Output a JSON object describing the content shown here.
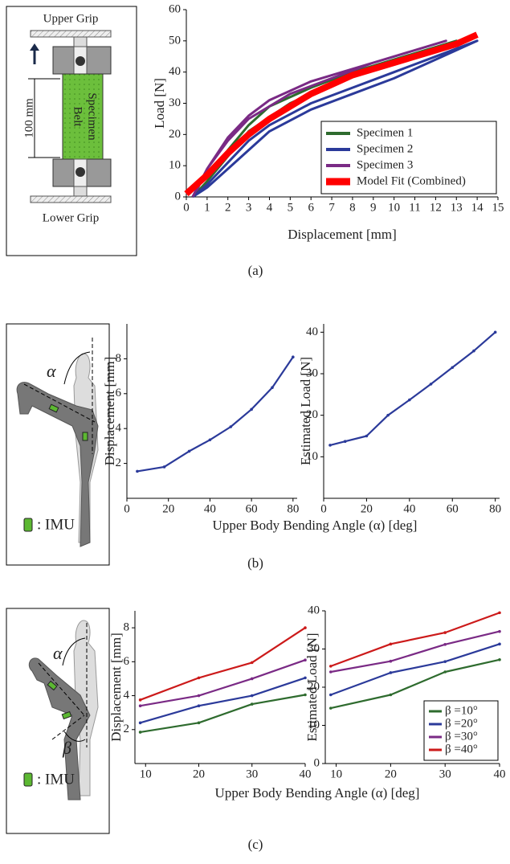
{
  "chart_data": [
    {
      "type": "line",
      "panel_label": "(a)",
      "xlabel": "Displacement [mm]",
      "ylabel": "Load [N]",
      "xlim": [
        0,
        15
      ],
      "ylim": [
        0,
        60
      ],
      "xticks": [
        0,
        1,
        2,
        3,
        4,
        5,
        6,
        7,
        8,
        9,
        10,
        11,
        12,
        13,
        14,
        15
      ],
      "yticks": [
        0,
        10,
        20,
        30,
        40,
        50,
        60
      ],
      "legend": "lower right",
      "markers": false,
      "series": [
        {
          "name": "Specimen 1",
          "color": "#2e6b2e",
          "line_width": 3,
          "x": [
            0.3,
            1,
            2,
            3,
            4,
            6,
            8,
            10,
            12,
            13,
            11,
            9,
            7,
            5,
            3,
            2,
            1,
            0.5
          ],
          "values": [
            0,
            5,
            15,
            23,
            29,
            35,
            40,
            44,
            48,
            50,
            46,
            41,
            36,
            30,
            21,
            13,
            5,
            1
          ]
        },
        {
          "name": "Specimen 2",
          "color": "#2b3a9a",
          "line_width": 3,
          "x": [
            0.3,
            1,
            2,
            3,
            4,
            6,
            8,
            10,
            12,
            14,
            12,
            10,
            8,
            6,
            4,
            3,
            2,
            1,
            0.5
          ],
          "values": [
            0,
            3,
            9,
            15,
            21,
            28,
            33,
            38,
            44,
            50,
            45,
            40,
            35,
            30,
            23,
            18,
            11,
            4,
            1
          ]
        },
        {
          "name": "Specimen 3",
          "color": "#7a2a85",
          "line_width": 3,
          "x": [
            0.3,
            1,
            2,
            3,
            4,
            6,
            8,
            10,
            12,
            12.5,
            11,
            9,
            7,
            5,
            3,
            2,
            1,
            0.5
          ],
          "values": [
            0,
            9,
            19,
            26,
            31,
            37,
            41,
            45,
            49,
            50,
            47,
            43,
            38,
            33,
            25,
            18,
            9,
            2
          ]
        },
        {
          "name": "Model Fit (Combined)",
          "color": "#ff0000",
          "line_width": 8,
          "x": [
            0,
            1,
            2,
            3,
            4,
            5,
            6,
            7,
            8,
            9,
            10,
            11,
            12,
            13,
            14
          ],
          "values": [
            1,
            7,
            14,
            20,
            25,
            29,
            33,
            36,
            39,
            41,
            43,
            45,
            47,
            49,
            52
          ]
        }
      ]
    },
    {
      "type": "line",
      "panel_label": "(b)",
      "xlabel": "Upper Body Bending Angle (α) [deg]",
      "ylabel": "Displacement [mm]",
      "xlim": [
        0,
        82
      ],
      "ylim": [
        0,
        10
      ],
      "xticks": [
        0,
        20,
        40,
        60,
        80
      ],
      "yticks": [
        2,
        4,
        6,
        8
      ],
      "markers": true,
      "color": "#2b3a9a",
      "x": [
        5,
        18,
        30,
        40,
        50,
        60,
        70,
        80
      ],
      "values": [
        1.55,
        1.8,
        2.7,
        3.35,
        4.1,
        5.1,
        6.35,
        8.1
      ]
    },
    {
      "type": "line",
      "ylabel": "Estimated Load [N]",
      "xlim": [
        0,
        82
      ],
      "ylim": [
        0,
        42
      ],
      "xticks": [
        0,
        20,
        40,
        60,
        80
      ],
      "yticks": [
        10,
        20,
        30,
        40
      ],
      "markers": true,
      "color": "#2b3a9a",
      "x": [
        3,
        10,
        20,
        30,
        40,
        50,
        60,
        70,
        80
      ],
      "values": [
        12.8,
        13.7,
        15,
        20,
        23.7,
        27.5,
        31.5,
        35.5,
        40
      ]
    },
    {
      "type": "line",
      "panel_label": "(c)",
      "xlabel": "Upper Body Bending Angle (α) [deg]",
      "ylabel": "Displacement [mm]",
      "xlim": [
        8,
        40
      ],
      "ylim": [
        0,
        9
      ],
      "xticks": [
        10,
        20,
        30,
        40
      ],
      "yticks": [
        2,
        4,
        6,
        8
      ],
      "markers": true,
      "x": [
        9,
        20,
        30,
        40
      ],
      "series": [
        {
          "color": "#2e6b2e",
          "values": [
            1.85,
            2.4,
            3.5,
            4.05
          ]
        },
        {
          "color": "#2b3a9a",
          "values": [
            2.4,
            3.4,
            4.0,
            5.05
          ]
        },
        {
          "color": "#7a2a85",
          "values": [
            3.4,
            4.0,
            5.0,
            6.1
          ]
        },
        {
          "color": "#cc1a1a",
          "values": [
            3.75,
            5.05,
            5.95,
            8.0
          ]
        }
      ]
    },
    {
      "type": "line",
      "ylabel": "Estimated Load [N]",
      "xlim": [
        8,
        40
      ],
      "ylim": [
        0,
        40
      ],
      "xticks": [
        10,
        20,
        30,
        40
      ],
      "yticks": [
        0,
        10,
        20,
        30,
        40
      ],
      "markers": true,
      "legend": "lower right",
      "x": [
        9,
        20,
        30,
        40
      ],
      "series": [
        {
          "name": "β =10°",
          "color": "#2e6b2e",
          "values": [
            14.5,
            18,
            24,
            27.2
          ]
        },
        {
          "name": "β =20°",
          "color": "#2b3a9a",
          "values": [
            18,
            23.8,
            26.7,
            31.3
          ]
        },
        {
          "name": "β =30°",
          "color": "#7a2a85",
          "values": [
            24,
            26.8,
            31.2,
            34.6
          ]
        },
        {
          "name": "β =40°",
          "color": "#cc1a1a",
          "values": [
            25.5,
            31.3,
            34.3,
            39.5
          ]
        }
      ]
    }
  ],
  "diagram_a": {
    "upper_grip": "Upper Grip",
    "lower_grip": "Lower Grip",
    "length": "100 mm",
    "specimen_top": "Belt",
    "specimen_bottom": "Specimen"
  },
  "diagram_b": {
    "angle": "α",
    "imu": ": IMU"
  },
  "diagram_c": {
    "angle_alpha": "α",
    "angle_beta": "β",
    "imu": ": IMU"
  }
}
